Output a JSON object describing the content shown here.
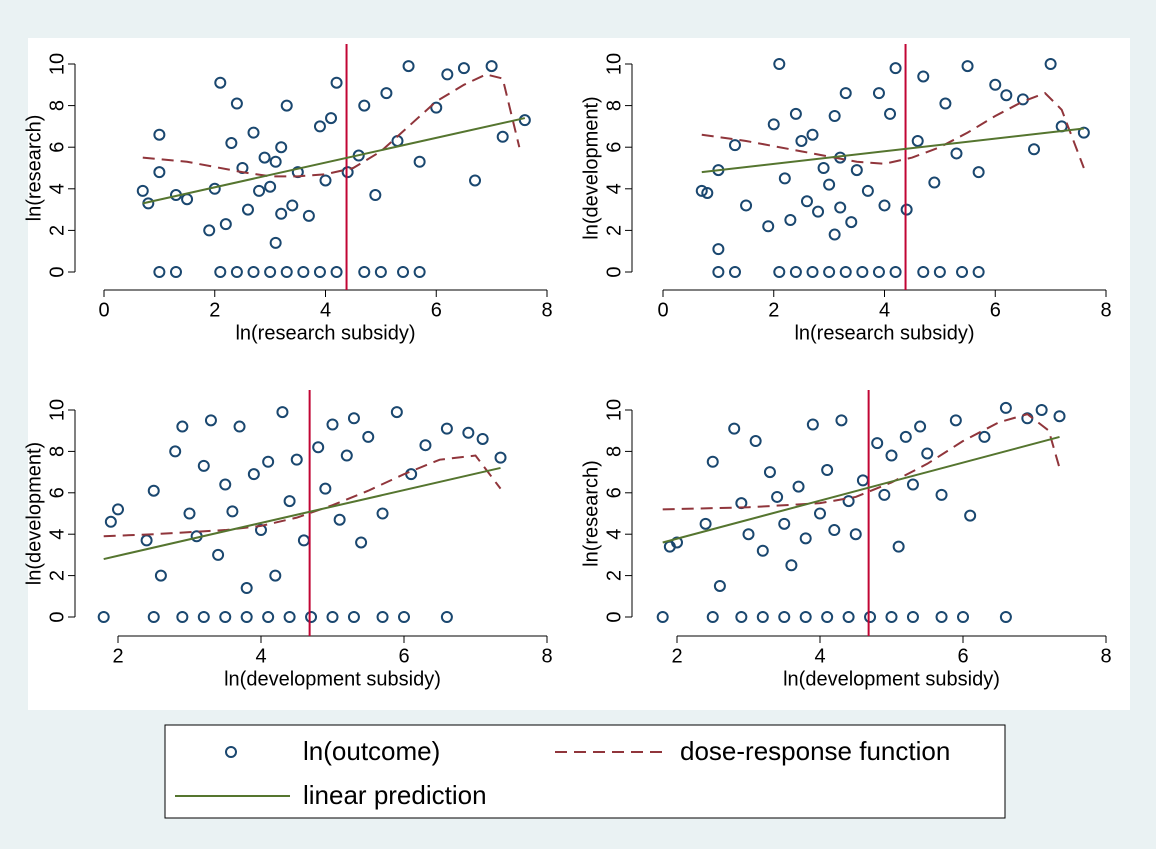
{
  "chart_data": [
    {
      "type": "scatter",
      "xlabel": "ln(research subsidy)",
      "ylabel": "ln(research)",
      "xlim": [
        0,
        8
      ],
      "ylim": [
        0,
        10
      ],
      "xticks": [
        0,
        2,
        4,
        6,
        8
      ],
      "yticks": [
        0,
        2,
        4,
        6,
        8,
        10
      ],
      "vline": 4.38,
      "series": [
        {
          "name": "ln(outcome)",
          "color": "#1a476f",
          "x": [
            0.7,
            0.8,
            1.0,
            1.0,
            1.3,
            1.5,
            1.9,
            2.0,
            2.1,
            2.2,
            2.3,
            2.4,
            2.5,
            2.6,
            2.7,
            2.8,
            2.9,
            3.0,
            3.1,
            3.1,
            3.2,
            3.2,
            3.3,
            3.4,
            3.5,
            3.7,
            3.9,
            4.0,
            4.1,
            4.2,
            4.4,
            4.6,
            4.7,
            4.9,
            5.1,
            5.3,
            5.5,
            5.7,
            6.0,
            6.2,
            6.5,
            6.7,
            7.0,
            7.2,
            7.6,
            1.0,
            1.3,
            2.1,
            2.4,
            2.7,
            3.0,
            3.3,
            3.6,
            3.9,
            4.2,
            4.7,
            5.0,
            5.4,
            5.7
          ],
          "values": [
            3.9,
            3.3,
            6.6,
            4.8,
            3.7,
            3.5,
            2.0,
            4.0,
            9.1,
            2.3,
            6.2,
            8.1,
            5.0,
            3.0,
            6.7,
            3.9,
            5.5,
            4.1,
            5.3,
            1.4,
            6.0,
            2.8,
            8.0,
            3.2,
            4.8,
            2.7,
            7.0,
            4.4,
            7.4,
            9.1,
            4.8,
            5.6,
            8.0,
            3.7,
            8.6,
            6.3,
            9.9,
            5.3,
            7.9,
            9.5,
            9.8,
            4.4,
            9.9,
            6.5,
            7.3,
            0,
            0,
            0,
            0,
            0,
            0,
            0,
            0,
            0,
            0,
            0,
            0,
            0,
            0
          ]
        },
        {
          "name": "dose-response function",
          "color": "#90353b",
          "x": [
            0.7,
            1.5,
            2.5,
            3.0,
            3.5,
            4.0,
            4.5,
            5.0,
            5.5,
            6.0,
            6.5,
            6.9,
            7.2,
            7.5
          ],
          "values": [
            5.5,
            5.3,
            4.8,
            4.6,
            4.6,
            4.7,
            5.0,
            5.8,
            7.0,
            8.2,
            9.0,
            9.5,
            9.3,
            6.0
          ]
        },
        {
          "name": "linear prediction",
          "color": "#55752f",
          "x": [
            0.7,
            7.6
          ],
          "values": [
            3.3,
            7.4
          ]
        }
      ]
    },
    {
      "type": "scatter",
      "xlabel": "ln(research subsidy)",
      "ylabel": "ln(development)",
      "xlim": [
        0,
        8
      ],
      "ylim": [
        0,
        10
      ],
      "xticks": [
        0,
        2,
        4,
        6,
        8
      ],
      "yticks": [
        0,
        2,
        4,
        6,
        8,
        10
      ],
      "vline": 4.38,
      "series": [
        {
          "name": "ln(outcome)",
          "color": "#1a476f",
          "x": [
            0.7,
            0.8,
            1.0,
            1.0,
            1.3,
            1.5,
            1.9,
            2.0,
            2.1,
            2.2,
            2.3,
            2.4,
            2.5,
            2.6,
            2.7,
            2.8,
            2.9,
            3.0,
            3.1,
            3.1,
            3.2,
            3.2,
            3.3,
            3.4,
            3.5,
            3.7,
            3.9,
            4.0,
            4.1,
            4.2,
            4.4,
            4.6,
            4.7,
            4.9,
            5.1,
            5.3,
            5.5,
            5.7,
            6.0,
            6.2,
            6.5,
            6.7,
            7.0,
            7.2,
            7.6,
            1.0,
            1.3,
            2.1,
            2.4,
            2.7,
            3.0,
            3.3,
            3.6,
            3.9,
            4.2,
            4.7,
            5.0,
            5.4,
            5.7
          ],
          "values": [
            3.9,
            3.8,
            4.9,
            1.1,
            6.1,
            3.2,
            2.2,
            7.1,
            10,
            4.5,
            2.5,
            7.6,
            6.3,
            3.4,
            6.6,
            2.9,
            5.0,
            4.2,
            7.5,
            1.8,
            5.5,
            3.1,
            8.6,
            2.4,
            4.9,
            3.9,
            8.6,
            3.2,
            7.6,
            9.8,
            3.0,
            6.3,
            9.4,
            4.3,
            8.1,
            5.7,
            9.9,
            4.8,
            9.0,
            8.5,
            8.3,
            5.9,
            10,
            7.0,
            6.7,
            0,
            0,
            0,
            0,
            0,
            0,
            0,
            0,
            0,
            0,
            0,
            0,
            0,
            0
          ]
        },
        {
          "name": "dose-response function",
          "color": "#90353b",
          "x": [
            0.7,
            1.5,
            2.5,
            3.5,
            4.0,
            4.5,
            5.0,
            5.5,
            6.0,
            6.5,
            6.9,
            7.2,
            7.6
          ],
          "values": [
            6.6,
            6.3,
            5.8,
            5.3,
            5.2,
            5.5,
            6.0,
            6.7,
            7.5,
            8.2,
            8.6,
            7.8,
            5.0
          ]
        },
        {
          "name": "linear prediction",
          "color": "#55752f",
          "x": [
            0.7,
            7.6
          ],
          "values": [
            4.8,
            6.9
          ]
        }
      ]
    },
    {
      "type": "scatter",
      "xlabel": "ln(development subsidy)",
      "ylabel": "ln(development)",
      "xlim": [
        2,
        8
      ],
      "ylim": [
        0,
        10
      ],
      "xticks": [
        2,
        4,
        6,
        8
      ],
      "yticks": [
        0,
        2,
        4,
        6,
        8,
        10
      ],
      "vline": 4.68,
      "series": [
        {
          "name": "ln(outcome)",
          "color": "#1a476f",
          "x": [
            1.9,
            2.0,
            2.4,
            2.5,
            2.6,
            2.8,
            2.9,
            3.0,
            3.1,
            3.2,
            3.3,
            3.4,
            3.5,
            3.6,
            3.7,
            3.8,
            3.9,
            4.0,
            4.1,
            4.2,
            4.3,
            4.4,
            4.5,
            4.6,
            4.8,
            4.9,
            5.0,
            5.1,
            5.2,
            5.3,
            5.4,
            5.5,
            5.7,
            5.9,
            6.1,
            6.3,
            6.6,
            6.9,
            7.1,
            7.35,
            1.8,
            2.5,
            2.9,
            3.2,
            3.5,
            3.8,
            4.1,
            4.4,
            4.7,
            5.0,
            5.3,
            5.7,
            6.0,
            6.6
          ],
          "values": [
            4.6,
            5.2,
            3.7,
            6.1,
            2.0,
            8.0,
            9.2,
            5.0,
            3.9,
            7.3,
            9.5,
            3.0,
            6.4,
            5.1,
            9.2,
            1.4,
            6.9,
            4.2,
            7.5,
            2.0,
            9.9,
            5.6,
            7.6,
            3.7,
            8.2,
            6.2,
            9.3,
            4.7,
            7.8,
            9.6,
            3.6,
            8.7,
            5.0,
            9.9,
            6.9,
            8.3,
            9.1,
            8.9,
            8.6,
            7.7,
            0,
            0,
            0,
            0,
            0,
            0,
            0,
            0,
            0,
            0,
            0,
            0,
            0,
            0
          ]
        },
        {
          "name": "dose-response function",
          "color": "#90353b",
          "x": [
            1.8,
            2.5,
            3.5,
            4.0,
            4.5,
            5.0,
            5.5,
            6.0,
            6.5,
            7.0,
            7.35
          ],
          "values": [
            3.9,
            4.0,
            4.2,
            4.4,
            4.8,
            5.4,
            6.1,
            6.9,
            7.6,
            7.8,
            6.2
          ]
        },
        {
          "name": "linear prediction",
          "color": "#55752f",
          "x": [
            1.8,
            7.35
          ],
          "values": [
            2.8,
            7.2
          ]
        }
      ]
    },
    {
      "type": "scatter",
      "xlabel": "ln(development subsidy)",
      "ylabel": "ln(research)",
      "xlim": [
        2,
        8
      ],
      "ylim": [
        0,
        10
      ],
      "xticks": [
        2,
        4,
        6,
        8
      ],
      "yticks": [
        0,
        2,
        4,
        6,
        8,
        10
      ],
      "vline": 4.68,
      "series": [
        {
          "name": "ln(outcome)",
          "color": "#1a476f",
          "x": [
            1.9,
            2.0,
            2.4,
            2.5,
            2.6,
            2.8,
            2.9,
            3.0,
            3.1,
            3.2,
            3.3,
            3.4,
            3.5,
            3.6,
            3.7,
            3.8,
            3.9,
            4.0,
            4.1,
            4.2,
            4.3,
            4.4,
            4.5,
            4.6,
            4.8,
            4.9,
            5.0,
            5.1,
            5.2,
            5.3,
            5.4,
            5.5,
            5.7,
            5.9,
            6.1,
            6.3,
            6.6,
            6.9,
            7.1,
            7.35,
            1.8,
            2.5,
            2.9,
            3.2,
            3.5,
            3.8,
            4.1,
            4.4,
            4.7,
            5.0,
            5.3,
            5.7,
            6.0,
            6.6
          ],
          "values": [
            3.4,
            3.6,
            4.5,
            7.5,
            1.5,
            9.1,
            5.5,
            4.0,
            8.5,
            3.2,
            7.0,
            5.8,
            4.5,
            2.5,
            6.3,
            3.8,
            9.3,
            5.0,
            7.1,
            4.2,
            9.5,
            5.6,
            4.0,
            6.6,
            8.4,
            5.9,
            7.8,
            3.4,
            8.7,
            6.4,
            9.2,
            7.9,
            5.9,
            9.5,
            4.9,
            8.7,
            10.1,
            9.6,
            10,
            9.7,
            0,
            0,
            0,
            0,
            0,
            0,
            0,
            0,
            0,
            0,
            0,
            0,
            0,
            0
          ]
        },
        {
          "name": "dose-response function",
          "color": "#90353b",
          "x": [
            1.8,
            3.0,
            4.0,
            4.5,
            5.0,
            5.5,
            6.0,
            6.5,
            6.9,
            7.2,
            7.35
          ],
          "values": [
            5.2,
            5.3,
            5.5,
            5.8,
            6.5,
            7.4,
            8.5,
            9.4,
            9.8,
            9.0,
            7.2
          ]
        },
        {
          "name": "linear prediction",
          "color": "#55752f",
          "x": [
            1.8,
            7.35
          ],
          "values": [
            3.6,
            8.7
          ]
        }
      ]
    }
  ]
}
